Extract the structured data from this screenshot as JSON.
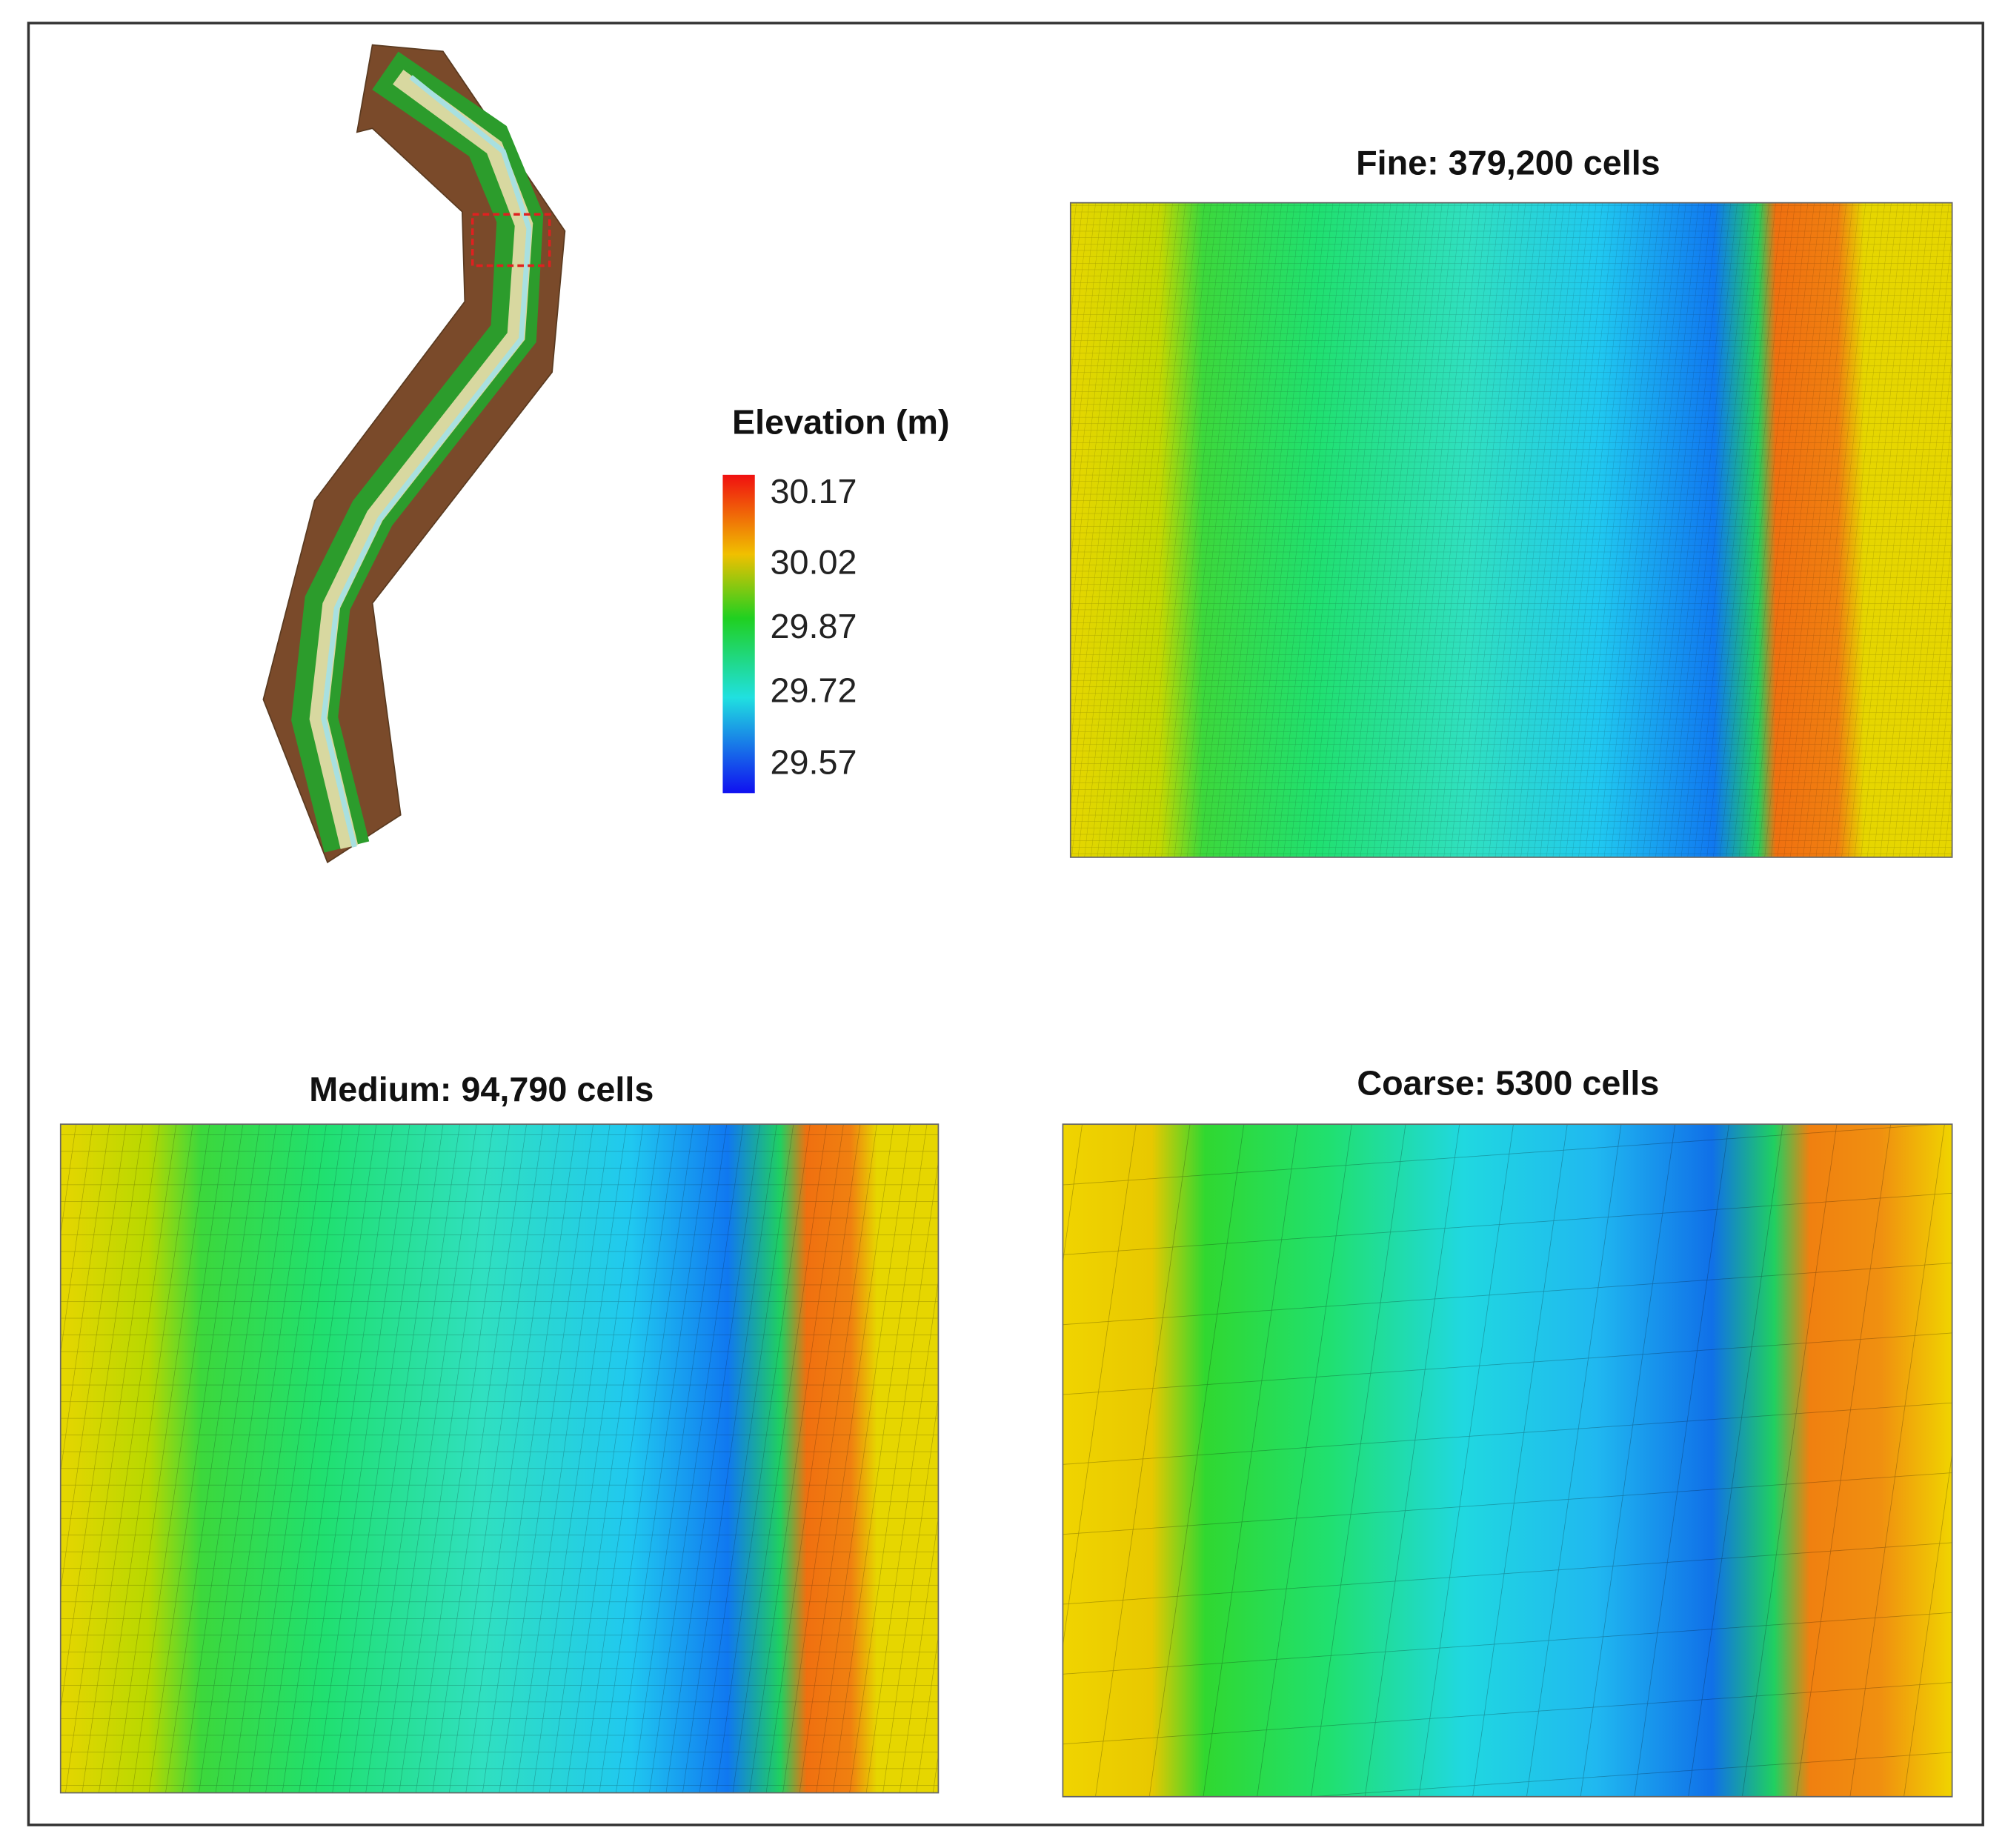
{
  "panels": [
    {
      "title": "Fine: 379,200 cells"
    },
    {
      "title": "Medium: 94,790 cells"
    },
    {
      "title": "Coarse: 5300 cells"
    }
  ],
  "legend": {
    "title": "Elevation (m)",
    "labels": [
      "30.17",
      "30.02",
      "29.87",
      "29.72",
      "29.57"
    ]
  }
}
